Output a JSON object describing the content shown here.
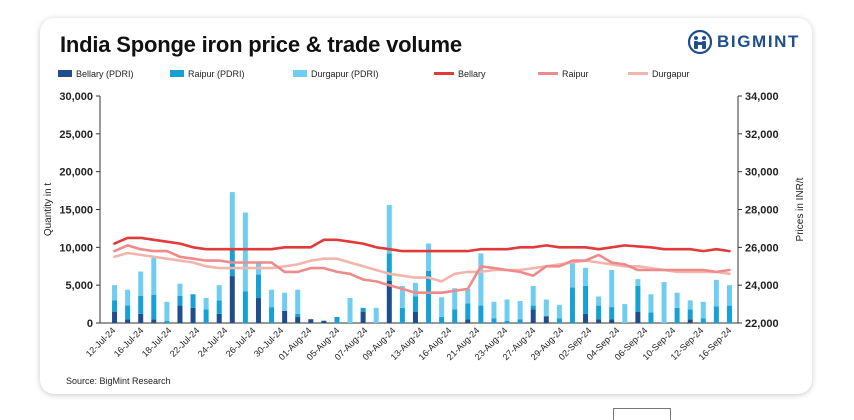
{
  "title": "India Sponge iron price & trade volume",
  "brand": "BIGMINT",
  "source": "Source: BigMint Research",
  "colors": {
    "bellary_bar": "#1f4e8c",
    "raipur_bar": "#15a0d6",
    "durgapur_bar": "#6fcdf2",
    "bellary_line": "#e03a3a",
    "raipur_line": "#ef8a8a",
    "durgapur_line": "#f3b4ac",
    "brand": "#1f4e8c"
  },
  "chart_data": {
    "type": "bar",
    "title": "India Sponge iron price & trade volume",
    "xlabel": "",
    "ylabel": "Quantity in t",
    "y2label": "Prices in INR/t",
    "ylim": [
      0,
      30000
    ],
    "y2lim": [
      22000,
      34000
    ],
    "yticks": [
      "0",
      "5,000",
      "10,000",
      "15,000",
      "20,000",
      "25,000",
      "30,000"
    ],
    "y2ticks": [
      "22,000",
      "24,000",
      "26,000",
      "28,000",
      "30,000",
      "32,000",
      "34,000"
    ],
    "xticks": [
      "12-Jul-24",
      "16-Jul-24",
      "18-Jul-24",
      "22-Jul-24",
      "24-Jul-24",
      "26-Jul-24",
      "30-Jul-24",
      "01-Aug-24",
      "05-Aug-24",
      "07-Aug-24",
      "09-Aug-24",
      "13-Aug-24",
      "16-Aug-24",
      "21-Aug-24",
      "23-Aug-24",
      "27-Aug-24",
      "29-Aug-24",
      "02-Sep-24",
      "04-Sep-24",
      "06-Sep-24",
      "10-Sep-24",
      "12-Sep-24",
      "16-Sep-24"
    ],
    "legend": [
      "Bellary (PDRI)",
      "Raipur (PDRI)",
      "Durgapur (PDRI)",
      "Bellary",
      "Raipur",
      "Durgapur"
    ],
    "legend_position": "top",
    "stacked": true,
    "bar_series": [
      {
        "name": "Bellary (PDRI)",
        "axis": "left",
        "values": [
          1500,
          500,
          1200,
          500,
          0,
          2300,
          2000,
          0,
          1200,
          6200,
          0,
          3300,
          0,
          1600,
          800,
          500,
          300,
          0,
          0,
          1500,
          0,
          5600,
          0,
          1500,
          0,
          0,
          0,
          500,
          0,
          0,
          0,
          0,
          1800,
          900,
          0,
          0,
          1200,
          500,
          500,
          0,
          1500,
          0,
          0,
          0,
          500,
          0,
          0,
          0
        ]
      },
      {
        "name": "Raipur (PDRI)",
        "axis": "left",
        "values": [
          1500,
          1800,
          2400,
          3200,
          300,
          1300,
          1800,
          1800,
          1800,
          3500,
          4200,
          3100,
          2100,
          0,
          400,
          0,
          0,
          800,
          0,
          500,
          0,
          3600,
          2000,
          2000,
          6900,
          800,
          1800,
          2100,
          2300,
          600,
          300,
          500,
          500,
          0,
          600,
          4700,
          3700,
          1800,
          1600,
          0,
          3400,
          1400,
          0,
          2000,
          1300,
          600,
          2200,
          2300
        ]
      },
      {
        "name": "Durgapur (PDRI)",
        "axis": "left",
        "values": [
          2000,
          2100,
          3200,
          4900,
          2500,
          1600,
          0,
          1500,
          2000,
          7600,
          10400,
          1700,
          2300,
          2400,
          3200,
          0,
          0,
          0,
          3300,
          0,
          2000,
          6400,
          2900,
          1800,
          3600,
          2600,
          2800,
          1900,
          6900,
          2200,
          2800,
          2400,
          2600,
          2200,
          1800,
          3400,
          2400,
          1200,
          4900,
          2500,
          900,
          2400,
          5400,
          2000,
          1200,
          2200,
          3500,
          2700
        ]
      }
    ],
    "line_series": [
      {
        "name": "Bellary",
        "axis": "right",
        "values": [
          26200,
          26500,
          26500,
          26400,
          26300,
          26200,
          26000,
          25900,
          25900,
          25900,
          25900,
          25900,
          25900,
          26000,
          26000,
          26000,
          26400,
          26400,
          26300,
          26200,
          26000,
          25900,
          25800,
          25800,
          25800,
          25800,
          25800,
          25800,
          25900,
          25900,
          25900,
          26000,
          26000,
          26100,
          26000,
          26000,
          26000,
          25900,
          26000,
          26100,
          26050,
          26000,
          25900,
          25900,
          25900,
          25800,
          25900,
          25800
        ]
      },
      {
        "name": "Raipur",
        "axis": "right",
        "values": [
          25800,
          26100,
          25900,
          25800,
          25800,
          25500,
          25400,
          25300,
          25300,
          25200,
          25200,
          25200,
          25200,
          24700,
          24700,
          24900,
          24900,
          24700,
          24600,
          24300,
          24200,
          24000,
          23800,
          23600,
          23600,
          23600,
          23700,
          23800,
          25000,
          24900,
          24800,
          24700,
          24500,
          25000,
          25000,
          25300,
          25300,
          25600,
          25200,
          25100,
          24800,
          24800,
          24800,
          24800,
          24800,
          24800,
          24700,
          24800
        ]
      },
      {
        "name": "Durgapur",
        "axis": "right",
        "values": [
          25500,
          25700,
          25600,
          25500,
          25400,
          25300,
          25200,
          25000,
          24900,
          24900,
          24900,
          24900,
          24900,
          25000,
          25100,
          25300,
          25400,
          25400,
          25200,
          25000,
          24800,
          24600,
          24500,
          24400,
          24400,
          24200,
          24600,
          24700,
          24700,
          24800,
          24800,
          24800,
          24900,
          25000,
          25100,
          25200,
          25300,
          25200,
          25100,
          25000,
          25000,
          24900,
          24800,
          24700,
          24700,
          24700,
          24700,
          24600
        ]
      }
    ]
  }
}
